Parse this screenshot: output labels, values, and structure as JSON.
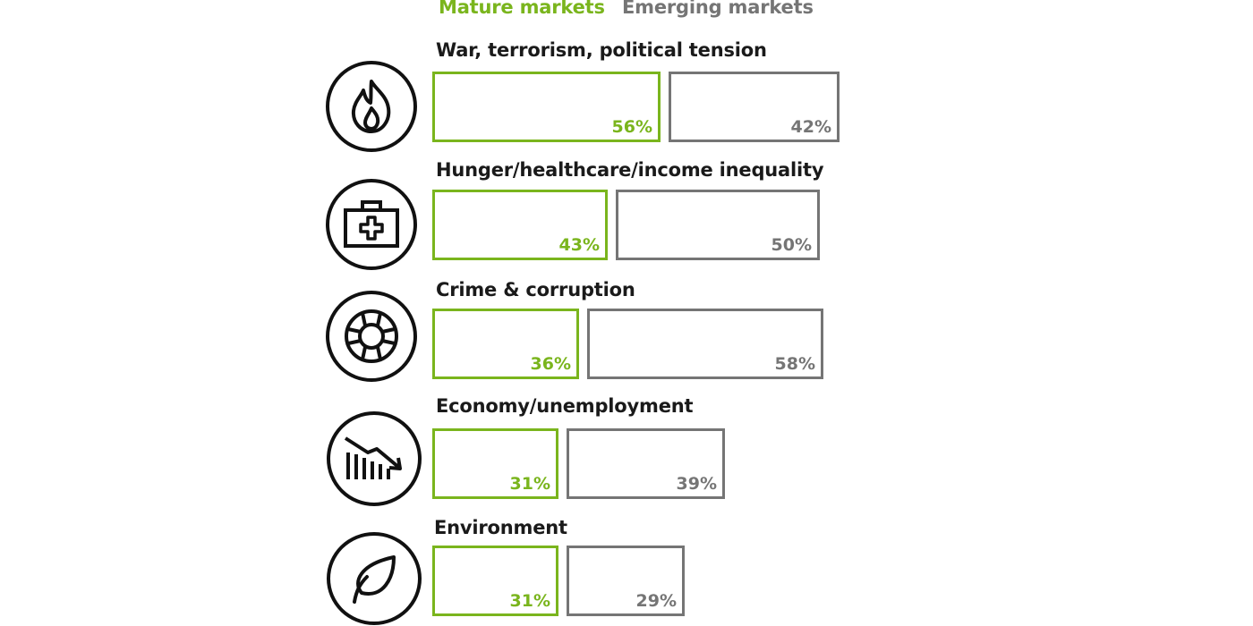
{
  "colors": {
    "mature": "#7ab51d",
    "emerging": "#757575"
  },
  "chart_data": {
    "type": "bar",
    "series": [
      {
        "name": "Mature markets",
        "values": [
          56,
          43,
          36,
          31,
          31
        ]
      },
      {
        "name": "Emerging markets",
        "values": [
          42,
          50,
          58,
          39,
          29
        ]
      }
    ],
    "categories": [
      "War, terrorism, political tension",
      "Hunger/healthcare/income inequality",
      "Crime & corruption",
      "Economy/unemployment",
      "Environment"
    ],
    "value_labels": [
      [
        "56%",
        "42%"
      ],
      [
        "43%",
        "50%"
      ],
      [
        "36%",
        "58%"
      ],
      [
        "31%",
        "39%"
      ],
      [
        "31%",
        "29%"
      ]
    ],
    "icons": [
      "flame-icon",
      "medical-kit-icon",
      "lifebuoy-icon",
      "declining-chart-icon",
      "leaf-icon"
    ],
    "legend_placement": "top",
    "unit": "%"
  }
}
